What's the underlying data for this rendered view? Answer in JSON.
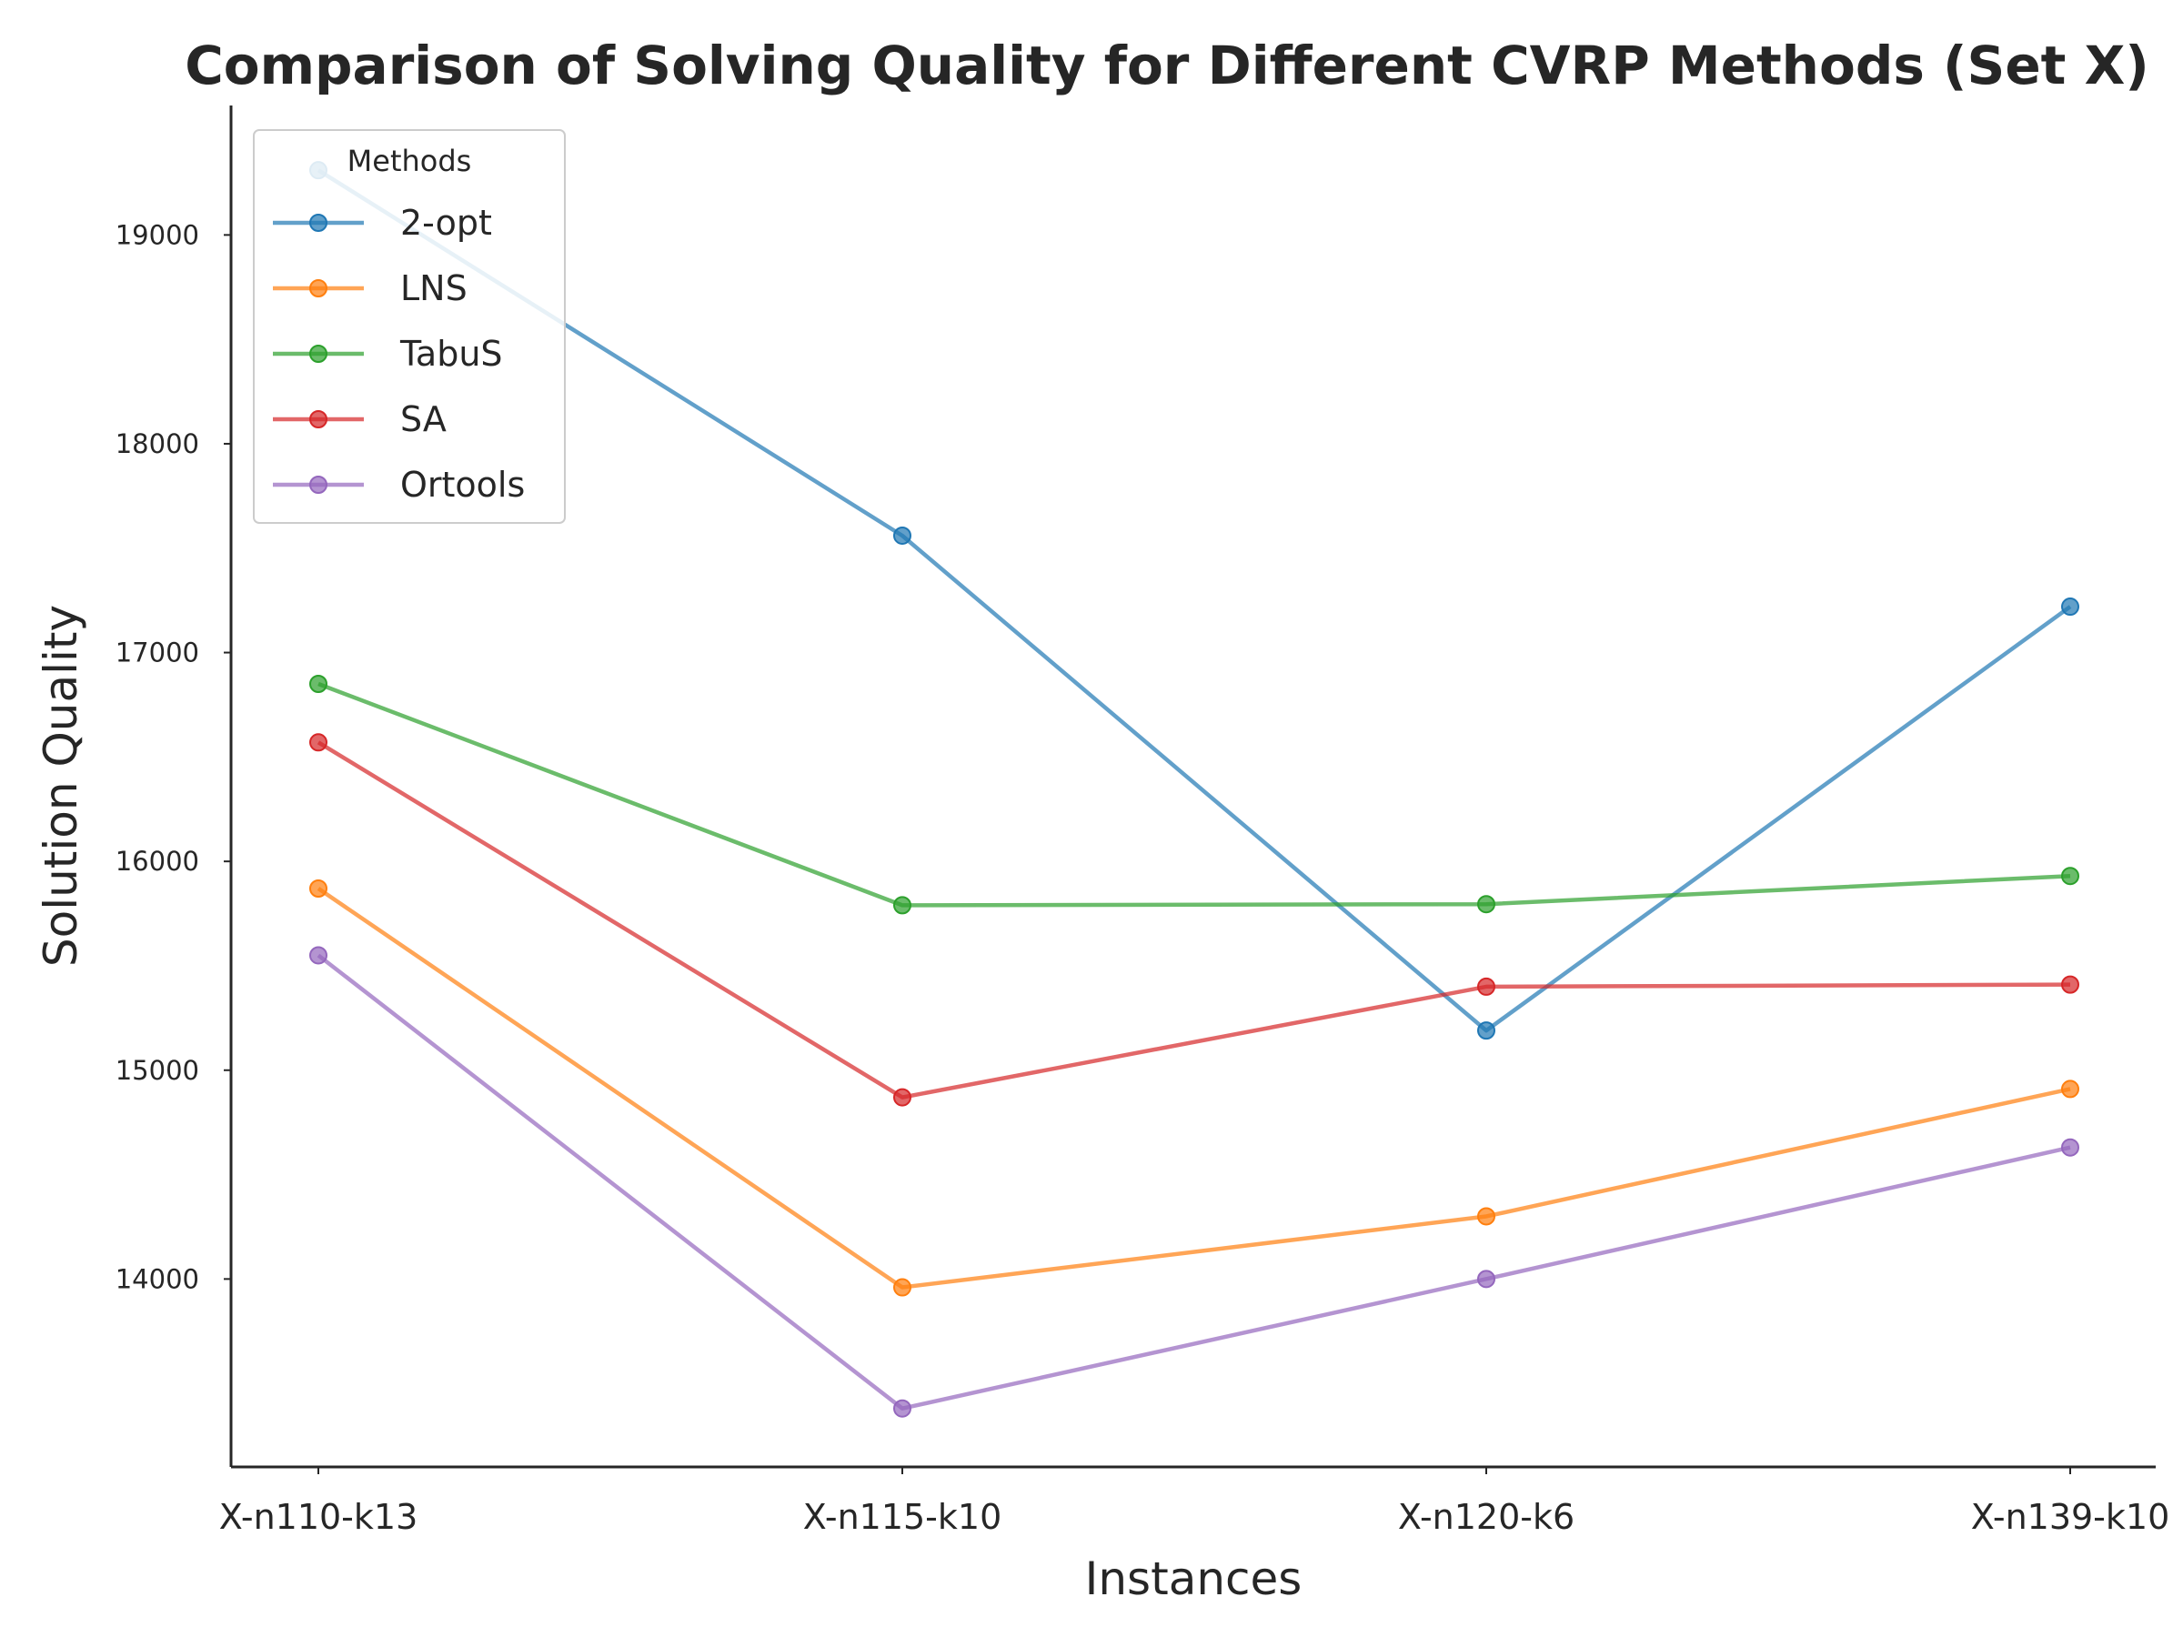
{
  "chart_data": {
    "type": "line",
    "title": "Comparison of Solving Quality for Different CVRP Methods (Set X)",
    "xlabel": "Instances",
    "ylabel": "Solution Quality",
    "categories": [
      "X-n110-k13",
      "X-n115-k10",
      "X-n120-k6",
      "X-n139-k10"
    ],
    "ylim": [
      13100,
      19620
    ],
    "yticks": [
      14000,
      15000,
      16000,
      17000,
      18000,
      19000
    ],
    "grid": false,
    "legend": {
      "title": "Methods",
      "placement": "top-left"
    },
    "series": [
      {
        "name": "2-opt",
        "color": "#1f77b4",
        "values": [
          19310,
          17560,
          15190,
          17220
        ]
      },
      {
        "name": "LNS",
        "color": "#ff7f0e",
        "values": [
          15870,
          13960,
          14300,
          14910
        ]
      },
      {
        "name": "TabuS",
        "color": "#2ca02c",
        "values": [
          16850,
          15790,
          15795,
          15930
        ]
      },
      {
        "name": "SA",
        "color": "#d62728",
        "values": [
          16570,
          14870,
          15400,
          15410
        ]
      },
      {
        "name": "Ortools",
        "color": "#9467bd",
        "values": [
          15550,
          13380,
          14000,
          14630
        ]
      }
    ]
  }
}
